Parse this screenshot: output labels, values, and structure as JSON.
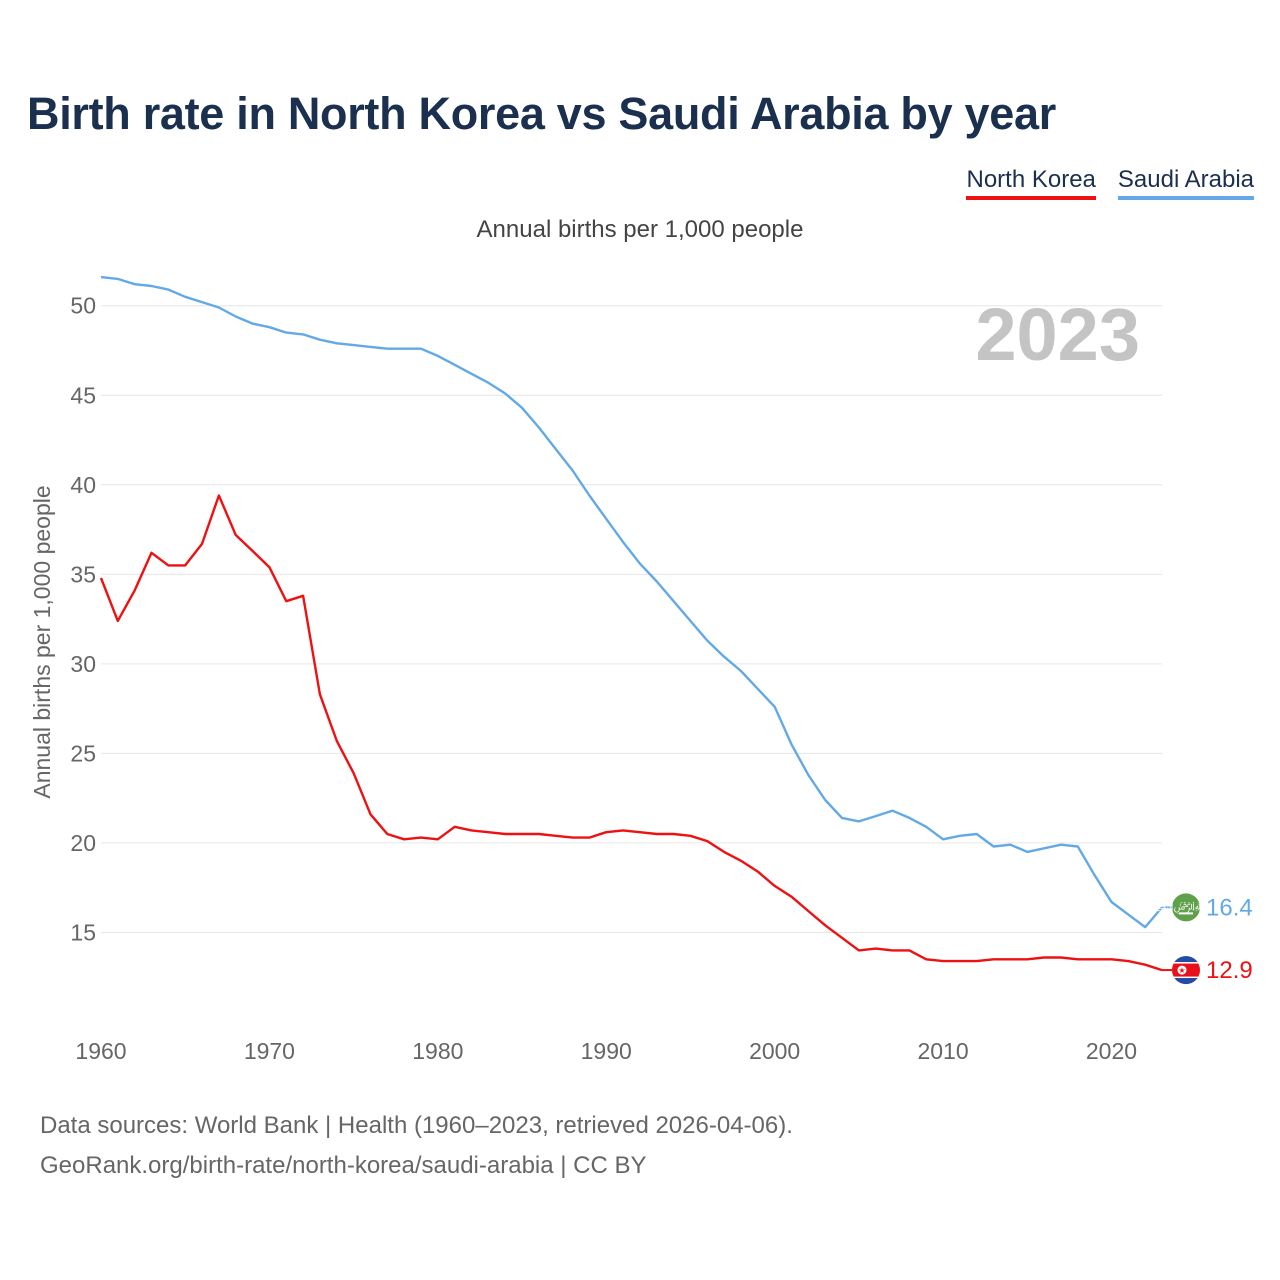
{
  "title": "Birth rate in North Korea vs Saudi Arabia by year",
  "subtitle": "Annual births per 1,000 people",
  "legend": [
    {
      "label": "North Korea",
      "color": "#ee1111"
    },
    {
      "label": "Saudi Arabia",
      "color": "#63a9e6"
    }
  ],
  "footer": {
    "line1": "Data sources: World Bank | Health (1960–2023, retrieved 2026-04-06).",
    "line2": "GeoRank.org/birth-rate/north-korea/saudi-arabia | CC BY"
  },
  "colors": {
    "grid": "#e6e6e6",
    "axis_text": "#666666",
    "year_label": "#c4c4c4"
  },
  "chart_data": {
    "type": "line",
    "title": "Birth rate in North Korea vs Saudi Arabia by year",
    "ylabel": "Annual births per 1,000 people",
    "xlabel": "",
    "year_label": "2023",
    "xlim": [
      1960,
      2023
    ],
    "ylim": [
      10,
      53
    ],
    "x_ticks": [
      1960,
      1970,
      1980,
      1990,
      2000,
      2010,
      2020
    ],
    "y_ticks": [
      15,
      20,
      25,
      30,
      35,
      40,
      45,
      50
    ],
    "x": [
      1960,
      1961,
      1962,
      1963,
      1964,
      1965,
      1966,
      1967,
      1968,
      1969,
      1970,
      1971,
      1972,
      1973,
      1974,
      1975,
      1976,
      1977,
      1978,
      1979,
      1980,
      1981,
      1982,
      1983,
      1984,
      1985,
      1986,
      1987,
      1988,
      1989,
      1990,
      1991,
      1992,
      1993,
      1994,
      1995,
      1996,
      1997,
      1998,
      1999,
      2000,
      2001,
      2002,
      2003,
      2004,
      2005,
      2006,
      2007,
      2008,
      2009,
      2010,
      2011,
      2012,
      2013,
      2014,
      2015,
      2016,
      2017,
      2018,
      2019,
      2020,
      2021,
      2022,
      2023
    ],
    "series": [
      {
        "name": "North Korea",
        "color": "#ee1111",
        "end_label": "12.9",
        "values": [
          34.8,
          32.4,
          34.1,
          36.2,
          35.5,
          35.5,
          36.7,
          39.4,
          37.2,
          36.3,
          35.4,
          33.5,
          33.8,
          28.3,
          25.7,
          23.9,
          21.6,
          20.5,
          20.2,
          20.3,
          20.2,
          20.9,
          20.7,
          20.6,
          20.5,
          20.5,
          20.5,
          20.4,
          20.3,
          20.3,
          20.6,
          20.7,
          20.6,
          20.5,
          20.5,
          20.4,
          20.1,
          19.5,
          19.0,
          18.4,
          17.6,
          17.0,
          16.2,
          15.4,
          14.7,
          14.0,
          14.1,
          14.0,
          14.0,
          13.5,
          13.4,
          13.4,
          13.4,
          13.5,
          13.5,
          13.5,
          13.6,
          13.6,
          13.5,
          13.5,
          13.5,
          13.4,
          13.2,
          12.9
        ]
      },
      {
        "name": "Saudi Arabia",
        "color": "#63a9e6",
        "end_label": "16.4",
        "values": [
          51.6,
          51.5,
          51.2,
          51.1,
          50.9,
          50.5,
          50.2,
          49.9,
          49.4,
          49.0,
          48.8,
          48.5,
          48.4,
          48.1,
          47.9,
          47.8,
          47.7,
          47.6,
          47.6,
          47.6,
          47.2,
          46.7,
          46.2,
          45.7,
          45.1,
          44.3,
          43.2,
          42.0,
          40.8,
          39.4,
          38.1,
          36.8,
          35.6,
          34.6,
          33.5,
          32.4,
          31.3,
          30.4,
          29.6,
          28.6,
          27.6,
          25.5,
          23.8,
          22.4,
          21.4,
          21.2,
          21.5,
          21.8,
          21.4,
          20.9,
          20.2,
          20.4,
          20.5,
          19.8,
          19.9,
          19.5,
          19.7,
          19.9,
          19.8,
          18.2,
          16.7,
          16.0,
          15.3,
          16.4
        ]
      }
    ]
  }
}
